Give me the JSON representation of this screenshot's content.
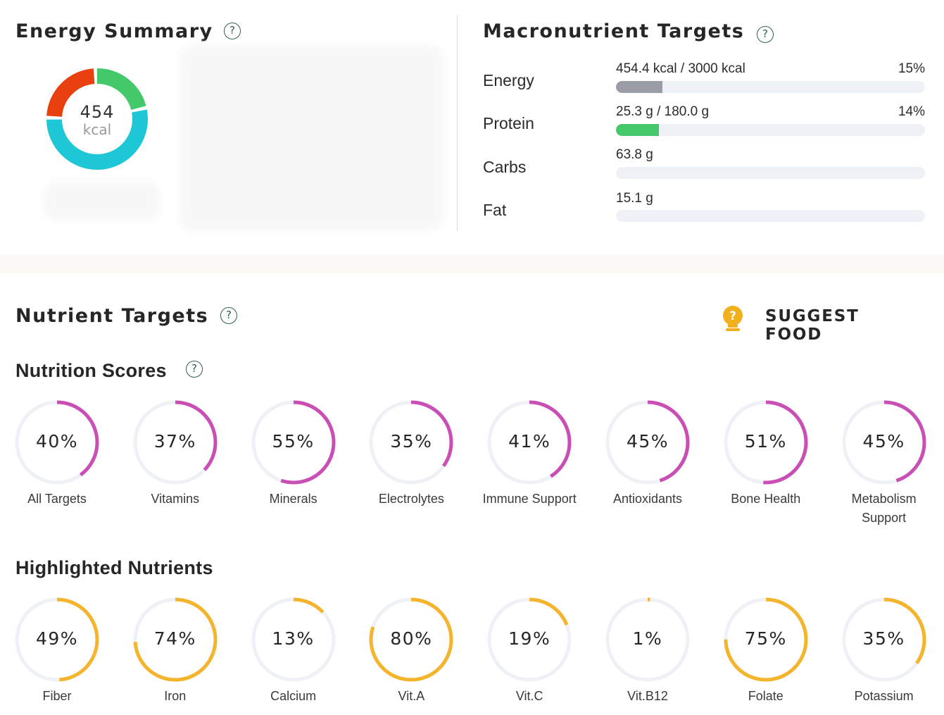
{
  "energy_summary": {
    "title": "Energy Summary",
    "help_icon": "question-circle-icon",
    "total_value": "454",
    "total_unit": "kcal",
    "segments": [
      {
        "name": "protein",
        "fraction": 0.22,
        "color": "#44c96a"
      },
      {
        "name": "carbs",
        "fraction": 0.54,
        "color": "#1ec7d6"
      },
      {
        "name": "fat",
        "fraction": 0.24,
        "color": "#e8410f"
      }
    ]
  },
  "macro_targets": {
    "title": "Macronutrient Targets",
    "help_icon": "question-circle-icon",
    "rows": [
      {
        "label": "Energy",
        "amount": "454.4 kcal / 3000 kcal",
        "percent": "15%",
        "fill": 0.15,
        "color": "#9a9ca6"
      },
      {
        "label": "Protein",
        "amount": "25.3 g / 180.0 g",
        "percent": "14%",
        "fill": 0.14,
        "color": "#44c96a"
      },
      {
        "label": "Carbs",
        "amount": "63.8 g",
        "percent": "",
        "fill": 0,
        "color": "#1ec7d6"
      },
      {
        "label": "Fat",
        "amount": "15.1 g",
        "percent": "",
        "fill": 0,
        "color": "#e8410f"
      }
    ]
  },
  "nutrient_targets": {
    "title": "Nutrient Targets",
    "help_icon": "question-circle-icon",
    "suggest_label": "SUGGEST FOOD",
    "suggest_icon": "lightbulb-question-icon",
    "suggest_color": "#f2b01e"
  },
  "nutrition_scores": {
    "title": "Nutrition Scores",
    "color": "#c94fb5",
    "items": [
      {
        "percent": "40%",
        "value": 0.4,
        "label": "All Targets"
      },
      {
        "percent": "37%",
        "value": 0.37,
        "label": "Vitamins"
      },
      {
        "percent": "55%",
        "value": 0.55,
        "label": "Minerals"
      },
      {
        "percent": "35%",
        "value": 0.35,
        "label": "Electrolytes"
      },
      {
        "percent": "41%",
        "value": 0.41,
        "label": "Immune Support"
      },
      {
        "percent": "45%",
        "value": 0.45,
        "label": "Antioxidants"
      },
      {
        "percent": "51%",
        "value": 0.51,
        "label": "Bone Health"
      },
      {
        "percent": "45%",
        "value": 0.45,
        "label": "Metabolism Support"
      }
    ]
  },
  "highlighted_nutrients": {
    "title": "Highlighted Nutrients",
    "color": "#f4b42c",
    "items": [
      {
        "percent": "49%",
        "value": 0.49,
        "label": "Fiber"
      },
      {
        "percent": "74%",
        "value": 0.74,
        "label": "Iron"
      },
      {
        "percent": "13%",
        "value": 0.13,
        "label": "Calcium"
      },
      {
        "percent": "80%",
        "value": 0.8,
        "label": "Vit.A"
      },
      {
        "percent": "19%",
        "value": 0.19,
        "label": "Vit.C"
      },
      {
        "percent": "1%",
        "value": 0.01,
        "label": "Vit.B12"
      },
      {
        "percent": "75%",
        "value": 0.75,
        "label": "Folate"
      },
      {
        "percent": "35%",
        "value": 0.35,
        "label": "Potassium"
      }
    ]
  }
}
